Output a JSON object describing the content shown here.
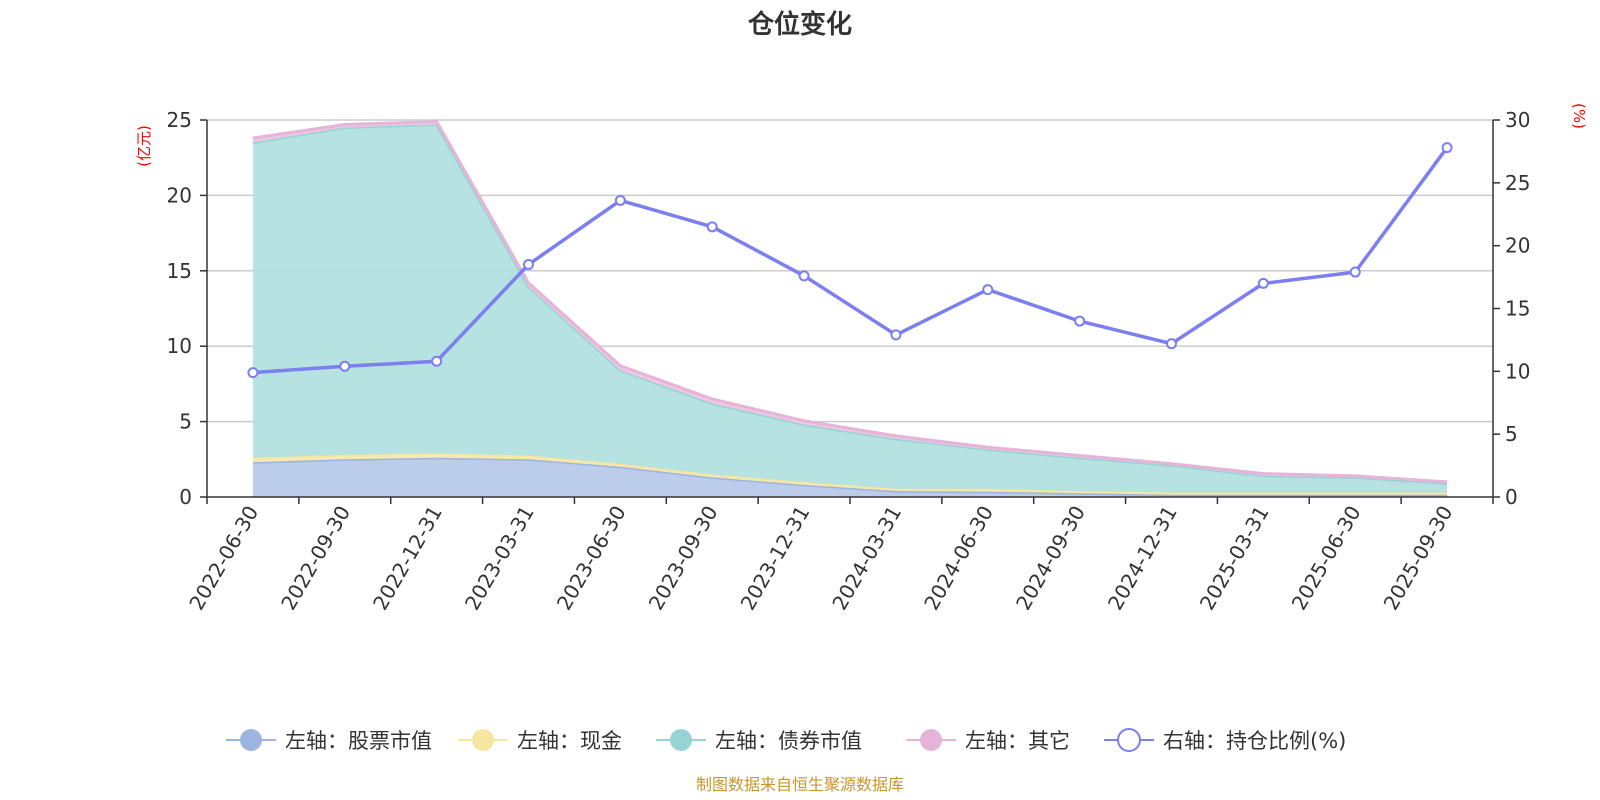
{
  "chart_data": {
    "type": "area",
    "title": "仓位变化",
    "source_note": "制图数据来自恒生聚源数据库",
    "categories": [
      "2022-06-30",
      "2022-09-30",
      "2022-12-31",
      "2023-03-31",
      "2023-06-30",
      "2023-09-30",
      "2023-12-31",
      "2024-03-31",
      "2024-06-30",
      "2024-09-30",
      "2024-12-31",
      "2025-03-31",
      "2025-06-30",
      "2025-09-30"
    ],
    "left_axis": {
      "unit": "(亿元)",
      "ylim": [
        0,
        25
      ],
      "ticks": [
        0,
        5,
        10,
        15,
        20,
        25
      ]
    },
    "right_axis": {
      "unit": "(%)",
      "ylim": [
        0,
        30
      ],
      "ticks": [
        0,
        5,
        10,
        15,
        20,
        25,
        30
      ]
    },
    "stacked_series": [
      {
        "name": "左轴：股票市值",
        "axis": "left",
        "color": "#9bb5e0",
        "fill": "#b8c9ea",
        "values": [
          2.3,
          2.5,
          2.6,
          2.5,
          2.0,
          1.3,
          0.8,
          0.4,
          0.35,
          0.25,
          0.15,
          0.15,
          0.15,
          0.15
        ]
      },
      {
        "name": "左轴：现金",
        "axis": "left",
        "color": "#f5e6a0",
        "fill": "#f7eab0",
        "values": [
          0.3,
          0.3,
          0.3,
          0.25,
          0.2,
          0.2,
          0.2,
          0.15,
          0.2,
          0.15,
          0.15,
          0.15,
          0.15,
          0.15
        ]
      },
      {
        "name": "左轴：债券市值",
        "axis": "left",
        "color": "#96d4d4",
        "fill": "#b2e0e0",
        "values": [
          20.9,
          21.7,
          21.8,
          11.2,
          6.2,
          4.7,
          3.8,
          3.3,
          2.6,
          2.2,
          1.8,
          1.1,
          1.0,
          0.6
        ]
      },
      {
        "name": "左轴：其它",
        "axis": "left",
        "color": "#e6b3d9",
        "fill": "#eec6e3",
        "values": [
          0.3,
          0.2,
          0.2,
          0.25,
          0.3,
          0.3,
          0.25,
          0.2,
          0.15,
          0.15,
          0.1,
          0.15,
          0.1,
          0.1
        ]
      }
    ],
    "line_series": [
      {
        "name": "右轴：持仓比例(%)",
        "axis": "right",
        "color": "#7b7ff0",
        "values": [
          9.9,
          10.4,
          10.8,
          18.5,
          23.6,
          21.5,
          17.6,
          12.9,
          16.5,
          14.0,
          12.2,
          17.0,
          17.9,
          27.8
        ]
      }
    ],
    "grid": true,
    "legend_position": "bottom"
  }
}
